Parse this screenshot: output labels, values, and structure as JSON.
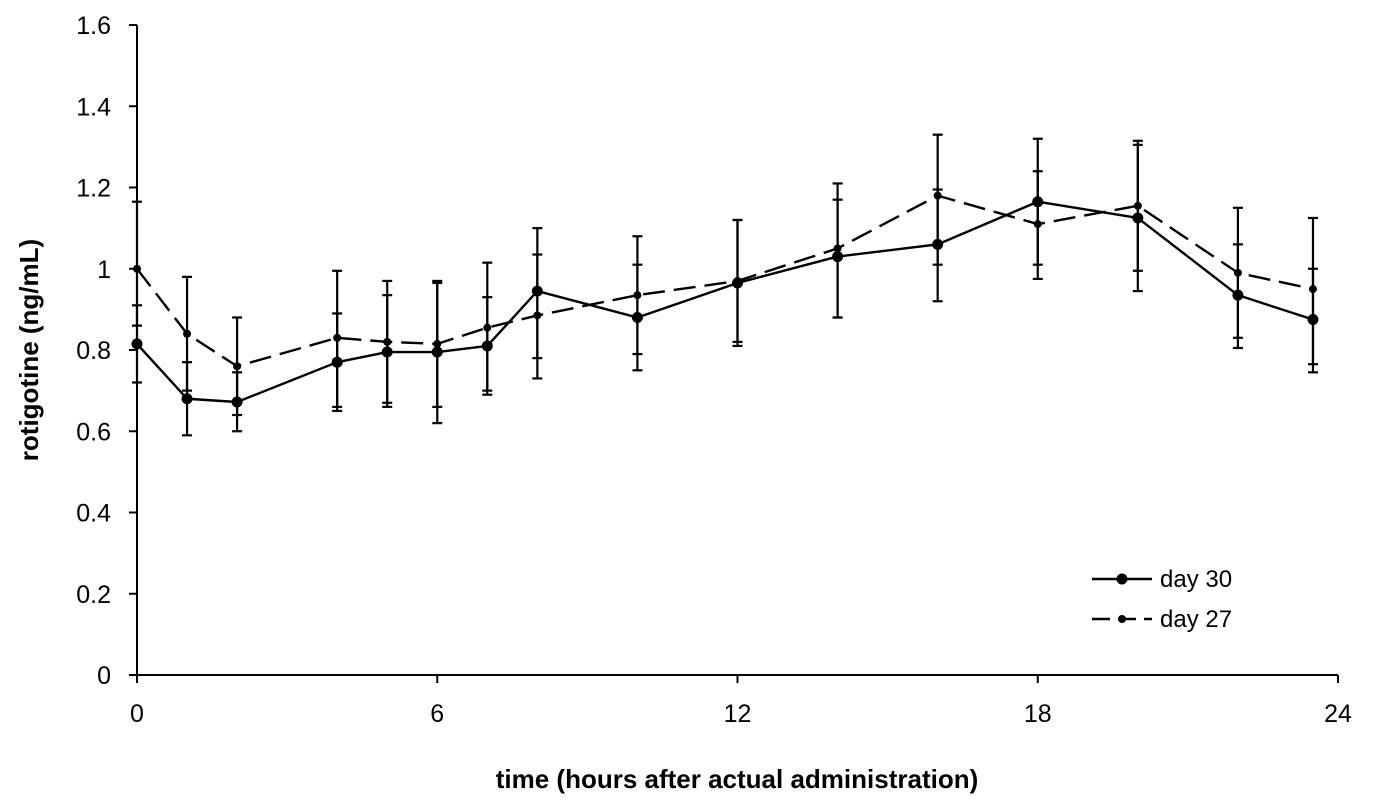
{
  "chart_data": {
    "type": "line",
    "title": "",
    "xlabel": "time (hours after actual  administration)",
    "ylabel": "rotigotine (ng/mL)",
    "xlim": [
      0,
      24
    ],
    "ylim": [
      0,
      1.6
    ],
    "x_ticks": [
      0,
      6,
      12,
      18,
      24
    ],
    "x_tick_labels": [
      "0",
      "6",
      "12",
      "18",
      "24"
    ],
    "y_ticks": [
      0,
      0.2,
      0.4,
      0.6,
      0.8,
      1,
      1.2,
      1.4,
      1.6
    ],
    "y_tick_labels": [
      "0",
      "0.2",
      "0.4",
      "0.6",
      "0.8",
      "1",
      "1.2",
      "1.4",
      "1.6"
    ],
    "grid": false,
    "legend_position": "bottom-right",
    "series": [
      {
        "name": "day 30",
        "style": "solid",
        "marker": "circle-large",
        "color": "#000000",
        "x": [
          0,
          1,
          2,
          4,
          5,
          6,
          7,
          8,
          10,
          12,
          14,
          16,
          18,
          20,
          22,
          23.5
        ],
        "y": [
          0.815,
          0.68,
          0.672,
          0.77,
          0.795,
          0.795,
          0.81,
          0.945,
          0.88,
          0.965,
          1.03,
          1.06,
          1.165,
          1.125,
          0.935,
          0.875
        ],
        "error_low": [
          0.72,
          0.59,
          0.6,
          0.65,
          0.66,
          0.62,
          0.69,
          0.78,
          0.75,
          0.81,
          0.88,
          0.92,
          1.01,
          0.945,
          0.805,
          0.745
        ],
        "error_high": [
          0.91,
          0.77,
          0.745,
          0.89,
          0.935,
          0.965,
          0.93,
          1.1,
          1.01,
          1.12,
          1.17,
          1.195,
          1.32,
          1.305,
          1.06,
          1.0
        ]
      },
      {
        "name": "day 27",
        "style": "dashed",
        "marker": "circle-small",
        "color": "#000000",
        "x": [
          0,
          1,
          2,
          4,
          5,
          6,
          7,
          8,
          10,
          12,
          14,
          16,
          18,
          20,
          22,
          23.5
        ],
        "y": [
          1.0,
          0.84,
          0.76,
          0.83,
          0.82,
          0.815,
          0.855,
          0.885,
          0.935,
          0.97,
          1.05,
          1.18,
          1.11,
          1.155,
          0.99,
          0.95
        ],
        "error_low": [
          0.86,
          0.7,
          0.64,
          0.66,
          0.67,
          0.66,
          0.7,
          0.73,
          0.79,
          0.82,
          0.88,
          1.01,
          0.975,
          0.995,
          0.83,
          0.765
        ],
        "error_high": [
          1.165,
          0.98,
          0.88,
          0.995,
          0.97,
          0.97,
          1.015,
          1.035,
          1.08,
          1.12,
          1.21,
          1.33,
          1.24,
          1.315,
          1.15,
          1.125
        ]
      }
    ]
  }
}
